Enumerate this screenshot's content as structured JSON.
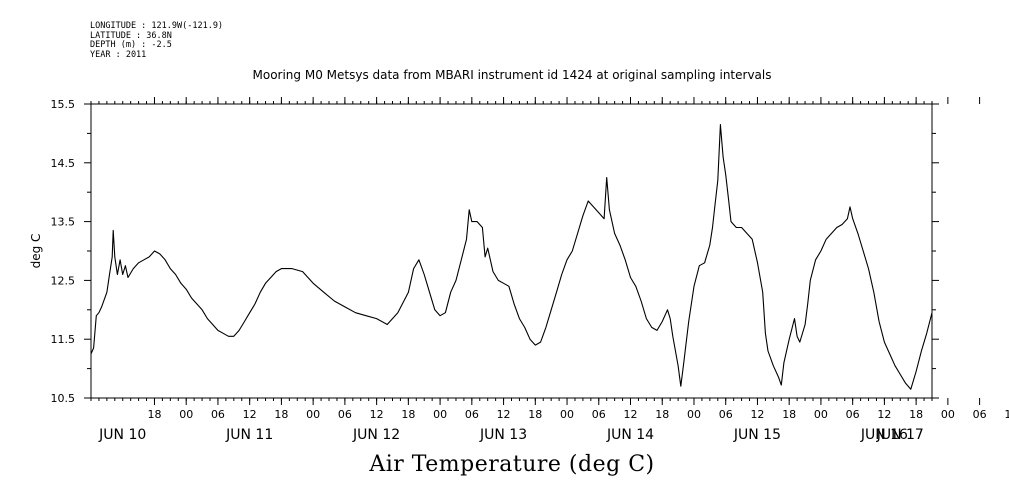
{
  "header": {
    "longitude": "LONGITUDE : 121.9W(-121.9)",
    "latitude": "LATITUDE : 36.8N",
    "depth": "DEPTH (m) : -2.5",
    "year": "YEAR : 2011"
  },
  "chart_data": {
    "type": "line",
    "title": "Mooring M0 Metsys data from MBARI instrument id 1424 at original sampling intervals",
    "xlabel": "Air Temperature (deg C)",
    "ylabel": "deg C",
    "ylim": [
      10.5,
      15.5
    ],
    "yticks": [
      10.5,
      11.5,
      12.5,
      13.5,
      14.5,
      15.5
    ],
    "xlim_hours": [
      0,
      159
    ],
    "x_unit": "hours since 2011-06-10 06:00",
    "hour_ticks": [
      "18",
      "00",
      "06",
      "12",
      "18",
      "00",
      "06",
      "12",
      "18",
      "00",
      "06",
      "12",
      "18",
      "00",
      "06",
      "12",
      "18",
      "00",
      "06",
      "12",
      "18",
      "00",
      "06",
      "12",
      "18",
      "00",
      "06",
      "12",
      "18",
      "00",
      "06"
    ],
    "date_labels": [
      "JUN 10",
      "JUN 11",
      "JUN 12",
      "JUN 13",
      "JUN 14",
      "JUN 15",
      "JUN 16",
      "JUN 17"
    ],
    "grid": false,
    "series": [
      {
        "points": [
          [
            0,
            11.25
          ],
          [
            0.5,
            11.35
          ],
          [
            1,
            11.9
          ],
          [
            1.5,
            11.95
          ],
          [
            2,
            12.05
          ],
          [
            3,
            12.3
          ],
          [
            3.5,
            12.6
          ],
          [
            4,
            12.9
          ],
          [
            4.2,
            13.35
          ],
          [
            4.5,
            12.9
          ],
          [
            5,
            12.6
          ],
          [
            5.5,
            12.85
          ],
          [
            6,
            12.6
          ],
          [
            6.5,
            12.75
          ],
          [
            7,
            12.55
          ],
          [
            8,
            12.7
          ],
          [
            9,
            12.8
          ],
          [
            10,
            12.85
          ],
          [
            11,
            12.9
          ],
          [
            12,
            13.0
          ],
          [
            13,
            12.95
          ],
          [
            14,
            12.85
          ],
          [
            15,
            12.7
          ],
          [
            16,
            12.6
          ],
          [
            17,
            12.45
          ],
          [
            18,
            12.35
          ],
          [
            19,
            12.2
          ],
          [
            20,
            12.1
          ],
          [
            21,
            12.0
          ],
          [
            22,
            11.85
          ],
          [
            23,
            11.75
          ],
          [
            24,
            11.65
          ],
          [
            25,
            11.6
          ],
          [
            26,
            11.55
          ],
          [
            27,
            11.55
          ],
          [
            28,
            11.65
          ],
          [
            29,
            11.8
          ],
          [
            30,
            11.95
          ],
          [
            31,
            12.1
          ],
          [
            32,
            12.3
          ],
          [
            33,
            12.45
          ],
          [
            34,
            12.55
          ],
          [
            35,
            12.65
          ],
          [
            36,
            12.7
          ],
          [
            38,
            12.7
          ],
          [
            40,
            12.65
          ],
          [
            42,
            12.45
          ],
          [
            44,
            12.3
          ],
          [
            46,
            12.15
          ],
          [
            48,
            12.05
          ],
          [
            50,
            11.95
          ],
          [
            52,
            11.9
          ],
          [
            54,
            11.85
          ],
          [
            56,
            11.75
          ],
          [
            58,
            11.95
          ],
          [
            60,
            12.3
          ],
          [
            61,
            12.7
          ],
          [
            62,
            12.85
          ],
          [
            63,
            12.6
          ],
          [
            64,
            12.3
          ],
          [
            65,
            12.0
          ],
          [
            66,
            11.9
          ],
          [
            67,
            11.95
          ],
          [
            68,
            12.3
          ],
          [
            69,
            12.5
          ],
          [
            70,
            12.85
          ],
          [
            71,
            13.2
          ],
          [
            71.5,
            13.7
          ],
          [
            72,
            13.5
          ],
          [
            73,
            13.5
          ],
          [
            74,
            13.4
          ],
          [
            74.5,
            12.9
          ],
          [
            75,
            13.05
          ],
          [
            76,
            12.65
          ],
          [
            77,
            12.5
          ],
          [
            78,
            12.45
          ],
          [
            79,
            12.4
          ],
          [
            80,
            12.1
          ],
          [
            81,
            11.85
          ],
          [
            82,
            11.7
          ],
          [
            83,
            11.5
          ],
          [
            84,
            11.4
          ],
          [
            85,
            11.45
          ],
          [
            86,
            11.7
          ],
          [
            87,
            12.0
          ],
          [
            88,
            12.3
          ],
          [
            89,
            12.6
          ],
          [
            90,
            12.85
          ],
          [
            91,
            13.0
          ],
          [
            92,
            13.3
          ],
          [
            93,
            13.6
          ],
          [
            94,
            13.85
          ],
          [
            95,
            13.75
          ],
          [
            96,
            13.65
          ],
          [
            97,
            13.55
          ],
          [
            97.5,
            14.25
          ],
          [
            98,
            13.7
          ],
          [
            99,
            13.3
          ],
          [
            100,
            13.1
          ],
          [
            101,
            12.85
          ],
          [
            102,
            12.55
          ],
          [
            103,
            12.4
          ],
          [
            104,
            12.15
          ],
          [
            105,
            11.85
          ],
          [
            106,
            11.7
          ],
          [
            107,
            11.65
          ],
          [
            108,
            11.8
          ],
          [
            109,
            12.0
          ],
          [
            109.5,
            11.85
          ],
          [
            110,
            11.55
          ],
          [
            111,
            11.05
          ],
          [
            111.5,
            10.7
          ],
          [
            112,
            11.05
          ],
          [
            113,
            11.8
          ],
          [
            114,
            12.4
          ],
          [
            115,
            12.75
          ],
          [
            116,
            12.8
          ],
          [
            117,
            13.1
          ],
          [
            117.5,
            13.4
          ],
          [
            118,
            13.8
          ],
          [
            118.5,
            14.2
          ],
          [
            119,
            15.15
          ],
          [
            119.5,
            14.6
          ],
          [
            120,
            14.3
          ],
          [
            120.5,
            13.9
          ],
          [
            121,
            13.5
          ],
          [
            122,
            13.4
          ],
          [
            123,
            13.4
          ],
          [
            124,
            13.3
          ],
          [
            125,
            13.2
          ],
          [
            126,
            12.8
          ],
          [
            127,
            12.3
          ],
          [
            127.5,
            11.6
          ],
          [
            128,
            11.3
          ],
          [
            129,
            11.05
          ],
          [
            130,
            10.85
          ],
          [
            130.5,
            10.72
          ],
          [
            131,
            11.1
          ],
          [
            132,
            11.5
          ],
          [
            133,
            11.85
          ],
          [
            133.5,
            11.55
          ],
          [
            134,
            11.45
          ],
          [
            135,
            11.75
          ],
          [
            135.5,
            12.1
          ],
          [
            136,
            12.5
          ],
          [
            137,
            12.85
          ],
          [
            138,
            13.0
          ],
          [
            139,
            13.2
          ],
          [
            140,
            13.3
          ],
          [
            141,
            13.4
          ],
          [
            142,
            13.45
          ],
          [
            143,
            13.55
          ],
          [
            143.5,
            13.75
          ],
          [
            144,
            13.55
          ],
          [
            145,
            13.3
          ],
          [
            146,
            13.0
          ],
          [
            147,
            12.7
          ],
          [
            148,
            12.3
          ],
          [
            149,
            11.8
          ],
          [
            150,
            11.45
          ],
          [
            151,
            11.25
          ],
          [
            152,
            11.05
          ],
          [
            153,
            10.9
          ],
          [
            154,
            10.75
          ],
          [
            155,
            10.65
          ],
          [
            156,
            10.95
          ],
          [
            157,
            11.3
          ],
          [
            158,
            11.6
          ],
          [
            159,
            11.95
          ]
        ]
      }
    ]
  }
}
